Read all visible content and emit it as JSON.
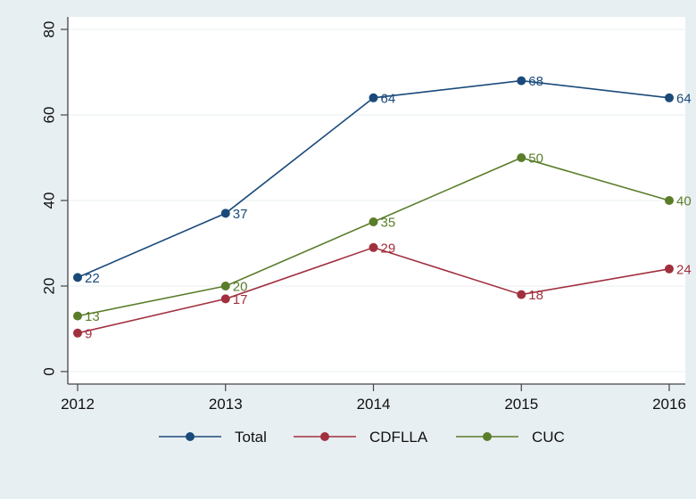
{
  "chart_data": {
    "type": "line",
    "title": "",
    "xlabel": "",
    "ylabel": "",
    "x": [
      "2012",
      "2013",
      "2014",
      "2015",
      "2016"
    ],
    "ylim": [
      0,
      80
    ],
    "yticks": [
      "0",
      "20",
      "40",
      "60",
      "80"
    ],
    "grid": true,
    "legend_position": "bottom",
    "series": [
      {
        "name": "Total",
        "color": "#1a4a7a",
        "values": [
          22,
          37,
          64,
          68,
          64
        ],
        "labels": [
          "22",
          "37",
          "64",
          "68",
          "64"
        ]
      },
      {
        "name": "CDFLLA",
        "color": "#a1303f",
        "values": [
          9,
          17,
          29,
          18,
          24
        ],
        "labels": [
          "9",
          "17",
          "29",
          "18",
          "24"
        ]
      },
      {
        "name": "CUC",
        "color": "#5a7d2a",
        "values": [
          13,
          20,
          35,
          50,
          40
        ],
        "labels": [
          "13",
          "20",
          "35",
          "50",
          "40"
        ]
      }
    ]
  }
}
